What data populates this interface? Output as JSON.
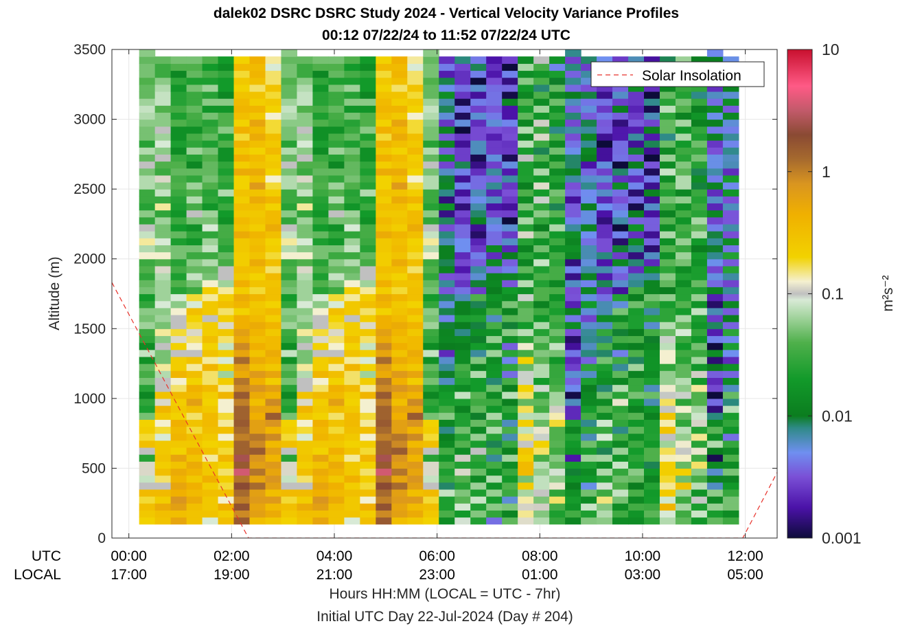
{
  "title_line1": "dalek02 DSRC DSRC Study 2024 - Vertical Velocity Variance Profiles",
  "title_line2": "00:12 07/22/24 to 11:52 07/22/24  UTC",
  "legend_label": "Solar Insolation",
  "colorbar_unit": "m²s⁻²",
  "row_label_utc": "UTC",
  "row_label_local": "LOCAL",
  "xaxis_label": "Hours HH:MM  (LOCAL = UTC - 7hr)",
  "xaxis_sublabel": "Initial UTC Day 22-Jul-2024 (Day # 204)",
  "colors": {
    "insolation_line": "#e8312a",
    "grid": "#e6e6e6",
    "axis": "#262626"
  },
  "chart_data": {
    "type": "heatmap",
    "ylabel": "Altitude (m)",
    "ylim": [
      0,
      3500
    ],
    "yticks": [
      0,
      500,
      1000,
      1500,
      2000,
      2500,
      3000,
      3500
    ],
    "xlim_hours": [
      -0.33,
      12.62
    ],
    "xticks_utc": [
      "00:00",
      "02:00",
      "04:00",
      "06:00",
      "08:00",
      "10:00",
      "12:00"
    ],
    "xticks_local": [
      "17:00",
      "19:00",
      "21:00",
      "23:00",
      "01:00",
      "03:00",
      "05:00"
    ],
    "colorbar": {
      "scale": "log",
      "range": [
        0.001,
        10
      ],
      "ticks": [
        "0.001",
        "0.01",
        "0.1",
        "1",
        "10"
      ]
    },
    "time_start_hours": 0.2,
    "time_step_hours": 0.3333,
    "altitude_start_m": 100,
    "altitude_step_m": 50,
    "variance_columns_log10": [
      [
        -0.5,
        -0.6,
        -0.7,
        -0.7,
        -0.6,
        -0.9,
        -1.2,
        -0.8,
        -1.0,
        -1.4,
        -1.0,
        -0.7,
        -0.7,
        -0.8,
        -0.6,
        -1.4,
        -1.5,
        -1.6,
        -1.7,
        -1.6,
        -1.5,
        -1.4,
        -1.5,
        -1.7,
        -1.2,
        -1.7,
        -1.6,
        -1.3,
        -1.2,
        -1.5,
        -1.2,
        -1.7,
        -1.6,
        -1.4,
        -1.2,
        -1.6,
        -1.2,
        -1.5,
        -1.1,
        -1.1,
        -1.0,
        -1.0,
        -1.1,
        -1.4,
        -1.3,
        -1.4,
        -1.5,
        -1.7,
        -1.1,
        -1.3,
        -1.2,
        -1.1,
        -1.2,
        -1.2,
        -1.4,
        -1.3,
        -1.5,
        -1.2,
        -1.3,
        -1.0,
        -1.3,
        -1.2,
        -1.4,
        -1.2,
        -1.3,
        -1.5,
        -1.3,
        -1.4
      ],
      [
        -0.7,
        -0.4,
        -0.4,
        -0.5,
        -0.5,
        -0.8,
        -0.8,
        -0.7,
        -0.6,
        -0.7,
        -0.5,
        -0.7,
        -0.9,
        -0.8,
        -0.7,
        -0.6,
        -0.6,
        -0.9,
        -0.7,
        -0.9,
        -1.1,
        -1.0,
        -0.9,
        -1.1,
        -1.3,
        -1.2,
        -1.2,
        -1.0,
        -1.2,
        -1.3,
        -1.1,
        -1.1,
        -1.0,
        -1.2,
        -1.4,
        -1.1,
        -1.1,
        -1.3,
        -1.0,
        -1.1,
        -1.1,
        -1.1,
        -1.3,
        -1.4,
        -1.5,
        -1.0,
        -1.4,
        -1.2,
        -1.1,
        -1.0,
        -1.3,
        -1.4,
        -1.2,
        -1.2,
        -1.2,
        -1.1,
        -1.1,
        -1.1,
        -1.3,
        -1.2,
        -1.1,
        -1.3,
        -1.1,
        -1.4,
        -1.4,
        -1.6,
        -1.2
      ],
      [
        -0.3,
        -0.3,
        -0.2,
        -0.3,
        -0.3,
        -0.4,
        -0.3,
        -0.4,
        -0.4,
        -0.3,
        -0.5,
        -0.6,
        -0.6,
        -0.4,
        -0.5,
        -0.6,
        -0.7,
        -0.5,
        -0.5,
        -0.6,
        -0.9,
        -0.6,
        -0.6,
        -0.8,
        -0.9,
        -0.8,
        -0.8,
        -0.8,
        -0.8,
        -1.0,
        -1.1,
        -1.2,
        -1.2,
        -1.5,
        -1.5,
        -1.5,
        -1.5,
        -1.4,
        -1.3,
        -1.5,
        -1.6,
        -1.5,
        -1.6,
        -1.6,
        -1.6,
        -1.7,
        -1.4,
        -1.5,
        -1.6,
        -1.4,
        -1.5,
        -1.3,
        -1.6,
        -1.7,
        -1.7,
        -1.6,
        -1.8,
        -1.6,
        -1.6,
        -1.6,
        -1.5,
        -1.7,
        -1.6,
        -1.6,
        -1.7,
        -1.4,
        -1.5
      ],
      [
        -0.5,
        -0.7,
        -0.4,
        -0.4,
        -0.3,
        -0.4,
        -0.4,
        -0.4,
        -0.5,
        -0.5,
        -0.5,
        -0.5,
        -0.6,
        -0.6,
        -0.6,
        -0.6,
        -0.5,
        -0.4,
        -0.4,
        -0.5,
        -0.6,
        -0.6,
        -0.7,
        -0.6,
        -0.8,
        -0.9,
        -1.0,
        -0.9,
        -0.9,
        -0.6,
        -0.6,
        -0.9,
        -0.8,
        -1.3,
        -1.3,
        -1.3,
        -1.3,
        -1.4,
        -1.4,
        -1.4,
        -1.6,
        -1.6,
        -1.6,
        -1.3,
        -1.2,
        -1.4,
        -1.3,
        -1.3,
        -1.3,
        -1.4,
        -1.4,
        -1.7,
        -1.6,
        -1.4,
        -1.5,
        -1.6,
        -1.7,
        -1.6,
        -1.3,
        -1.4,
        -1.3,
        -1.5,
        -1.5,
        -1.6,
        -1.5,
        -1.3,
        -1.4
      ],
      [
        -0.9,
        -0.6,
        -0.4,
        -0.6,
        -0.7,
        -0.6,
        -0.5,
        -0.5,
        -0.7,
        -0.7,
        -0.6,
        -0.5,
        -0.6,
        -0.7,
        -0.4,
        -0.6,
        -0.5,
        -0.8,
        -0.5,
        -0.5,
        -0.6,
        -0.8,
        -0.6,
        -0.8,
        -0.7,
        -0.6,
        -0.6,
        -0.5,
        -0.7,
        -0.8,
        -0.6,
        -0.8,
        -0.8,
        -0.8,
        -0.8,
        -1.4,
        -1.2,
        -1.2,
        -1.3,
        -1.1,
        -1.4,
        -1.5,
        -1.2,
        -1.2,
        -1.3,
        -1.6,
        -1.6,
        -1.4,
        -1.4,
        -1.5,
        -1.3,
        -1.5,
        -1.3,
        -1.4,
        -1.5,
        -1.4,
        -1.3,
        -1.6,
        -1.5,
        -1.7,
        -1.4,
        -1.5,
        -1.3,
        -1.5,
        -1.5,
        -1.5,
        -1.4
      ],
      [
        -0.7,
        -0.6,
        -0.5,
        -0.8,
        -0.6,
        -0.6,
        -0.7,
        -0.6,
        -0.7,
        -0.6,
        -0.7,
        -0.8,
        -0.8,
        -0.6,
        -0.7,
        -0.8,
        -0.7,
        -0.9,
        -0.6,
        -0.8,
        -0.8,
        -1.1,
        -0.8,
        -0.9,
        -0.7,
        -0.9,
        -0.8,
        -0.8,
        -0.9,
        -0.8,
        -0.7,
        -0.6,
        -0.5,
        -0.9,
        -1.0,
        -1.0,
        -1.2,
        -1.4,
        -1.5,
        -1.5,
        -1.6,
        -1.3,
        -1.5,
        -1.6,
        -1.7,
        -1.7,
        -1.6,
        -1.3,
        -1.5,
        -1.6,
        -1.5,
        -1.6,
        -1.6,
        -1.8,
        -1.6,
        -1.6,
        -1.4,
        -1.3,
        -1.5,
        -1.6,
        -1.3,
        -1.7,
        -1.7,
        -1.9,
        -1.5,
        -2.0,
        -1.6
      ],
      [
        0.1,
        0.1,
        0.2,
        0.2,
        0.1,
        0.1,
        0.1,
        0.4,
        0.3,
        0.3,
        0.3,
        0.1,
        0.2,
        0.1,
        0.0,
        0.2,
        0.0,
        0.1,
        0.1,
        0.1,
        0.0,
        -0.1,
        -0.2,
        -0.1,
        -0.2,
        -0.2,
        -0.2,
        -0.3,
        -0.2,
        -0.4,
        -0.5,
        -0.4,
        -0.5,
        -0.6,
        -0.5,
        -0.5,
        -0.6,
        -0.5,
        -0.7,
        -0.4,
        -0.6,
        -0.5,
        -0.5,
        -0.6,
        -0.5,
        -0.6,
        -0.5,
        -0.6,
        -0.5,
        -0.7,
        -0.5,
        -0.6,
        -0.5,
        -0.5,
        -0.5,
        -0.6,
        -0.4,
        -0.5,
        -0.5,
        -0.6,
        -0.4,
        -0.7,
        -0.6,
        -0.7,
        -0.6,
        -0.5,
        -0.5
      ],
      [
        -0.5,
        -0.4,
        -0.2,
        -0.3,
        -0.1,
        0.0,
        -0.1,
        0.0,
        0.0,
        -0.1,
        0.0,
        0.0,
        -0.1,
        -0.1,
        -0.3,
        -0.2,
        -0.3,
        -0.3,
        -0.3,
        -0.3,
        -0.3,
        -0.3,
        -0.4,
        -0.4,
        -0.4,
        -0.4,
        -0.3,
        -0.4,
        -0.5,
        -0.4,
        -0.7,
        -0.5,
        -0.5,
        -0.6,
        -0.6,
        -0.5,
        -0.5,
        -0.5,
        -0.5,
        -0.6,
        -0.4,
        -0.5,
        -0.5,
        -0.6,
        -0.4,
        -0.5,
        -0.5,
        -0.5,
        -0.3,
        -0.4,
        -0.4,
        -0.4,
        -0.5,
        -0.5,
        -0.5,
        -0.5,
        -0.4,
        -0.4,
        -0.5,
        -0.5,
        -0.5,
        -0.6,
        -0.6,
        -0.5,
        -0.6,
        -0.4,
        -0.5
      ],
      [
        -0.5,
        -0.4,
        -0.3,
        -0.2,
        -0.3,
        -0.2,
        -0.3,
        -0.2,
        -0.3,
        -0.3,
        -0.3,
        -0.3,
        -0.1,
        -0.2,
        -0.1,
        0.0,
        -0.2,
        -0.2,
        -0.3,
        -0.3,
        -0.5,
        -0.3,
        -0.4,
        -0.4,
        -0.5,
        -0.4,
        -0.6,
        -0.5,
        -0.5,
        -0.5,
        -0.5,
        -0.5,
        -0.5,
        -0.7,
        -0.5,
        -0.6,
        -0.7,
        -0.6,
        -0.6,
        -0.7,
        -0.5,
        -0.5,
        -0.5,
        -0.4,
        -0.6,
        -0.6,
        -0.5,
        -0.5,
        -0.8,
        -0.7,
        -0.7,
        -0.8,
        -0.6,
        -0.6,
        -0.5,
        -0.6,
        -0.6,
        -0.8,
        -0.7,
        -0.7,
        -0.8,
        -0.7,
        -0.7,
        -0.7,
        -0.9,
        -0.9,
        -0.9
      ]
    ]
  }
}
